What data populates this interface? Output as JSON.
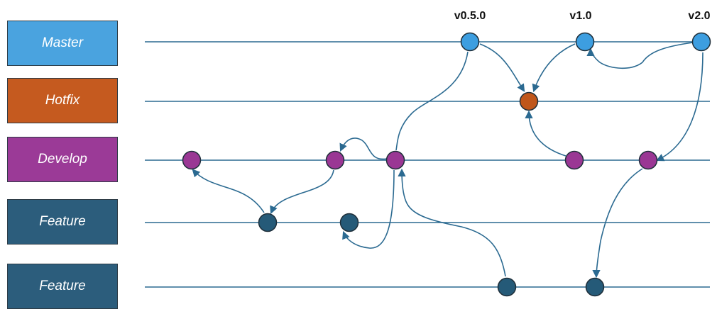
{
  "lanes": [
    {
      "id": "master",
      "label": "Master",
      "color": "#4aa3df",
      "node_color": "#3d9ee0"
    },
    {
      "id": "hotfix",
      "label": "Hotfix",
      "color": "#c55a1f",
      "node_color": "#c0561a"
    },
    {
      "id": "develop",
      "label": "Develop",
      "color": "#9b3a97",
      "node_color": "#9a3794"
    },
    {
      "id": "feature1",
      "label": "Feature",
      "color": "#2c5d7c",
      "node_color": "#255a78"
    },
    {
      "id": "feature2",
      "label": "Feature",
      "color": "#2c5d7c",
      "node_color": "#255a78"
    }
  ],
  "tags": {
    "v050": "v0.5.0",
    "v10": "v1.0",
    "v20": "v2.0"
  },
  "colors": {
    "line": "#2b6a91",
    "node_stroke": "#1f2f3a"
  }
}
